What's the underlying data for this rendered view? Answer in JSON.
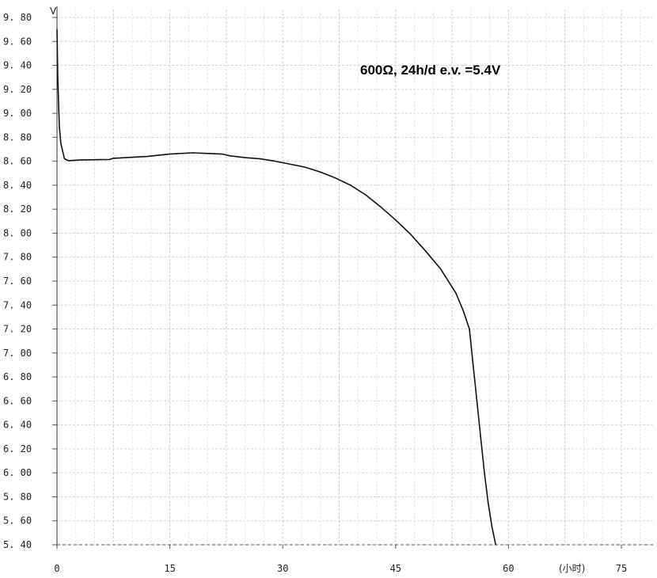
{
  "chart_data": {
    "type": "line",
    "annotation": "600Ω, 24h/d e.v. =5.4V",
    "ylabel": "V",
    "xlabel": "(小时)",
    "xlim": [
      0,
      75
    ],
    "ylim": [
      5.4,
      9.8
    ],
    "xticks": [
      0,
      15,
      30,
      45,
      60,
      75
    ],
    "xtick_labels": [
      "0",
      "15",
      "30",
      "45",
      "60",
      "75"
    ],
    "yticks": [
      9.8,
      9.6,
      9.4,
      9.2,
      9.0,
      8.8,
      8.6,
      8.4,
      8.2,
      8.0,
      7.8,
      7.6,
      7.4,
      7.2,
      7.0,
      6.8,
      6.6,
      6.4,
      6.2,
      6.0,
      5.8,
      5.6,
      5.4
    ],
    "ytick_labels": [
      "9. 80",
      "9. 60",
      "9. 40",
      "9. 20",
      "9. 00",
      "8. 80",
      "8. 60",
      "8. 40",
      "8. 20",
      "8. 00",
      "7. 80",
      "7. 60",
      "7. 40",
      "7. 20",
      "7. 00",
      "6. 80",
      "6. 60",
      "6. 40",
      "6. 20",
      "6. 00",
      "5. 80",
      "5. 60",
      "5. 40"
    ],
    "cutoff_voltage": 5.4,
    "grid": true,
    "series": [
      {
        "x": [
          0,
          0.1,
          0.3,
          0.5,
          1,
          1.5,
          3,
          7,
          7.5,
          12,
          13.5,
          15,
          18,
          22,
          23,
          25,
          27,
          29,
          31,
          33,
          35,
          37,
          39,
          41,
          43,
          45,
          47,
          49,
          51,
          53,
          54,
          54.8,
          55.3,
          55.8,
          56.3,
          56.8,
          57.3,
          57.8,
          58.3
        ],
        "y": [
          9.7,
          9.3,
          8.9,
          8.75,
          8.62,
          8.605,
          8.61,
          8.615,
          8.625,
          8.64,
          8.65,
          8.66,
          8.67,
          8.66,
          8.645,
          8.63,
          8.62,
          8.6,
          8.575,
          8.55,
          8.51,
          8.46,
          8.4,
          8.32,
          8.22,
          8.11,
          7.99,
          7.85,
          7.7,
          7.5,
          7.35,
          7.2,
          6.9,
          6.6,
          6.3,
          6.0,
          5.75,
          5.55,
          5.4
        ]
      }
    ]
  }
}
